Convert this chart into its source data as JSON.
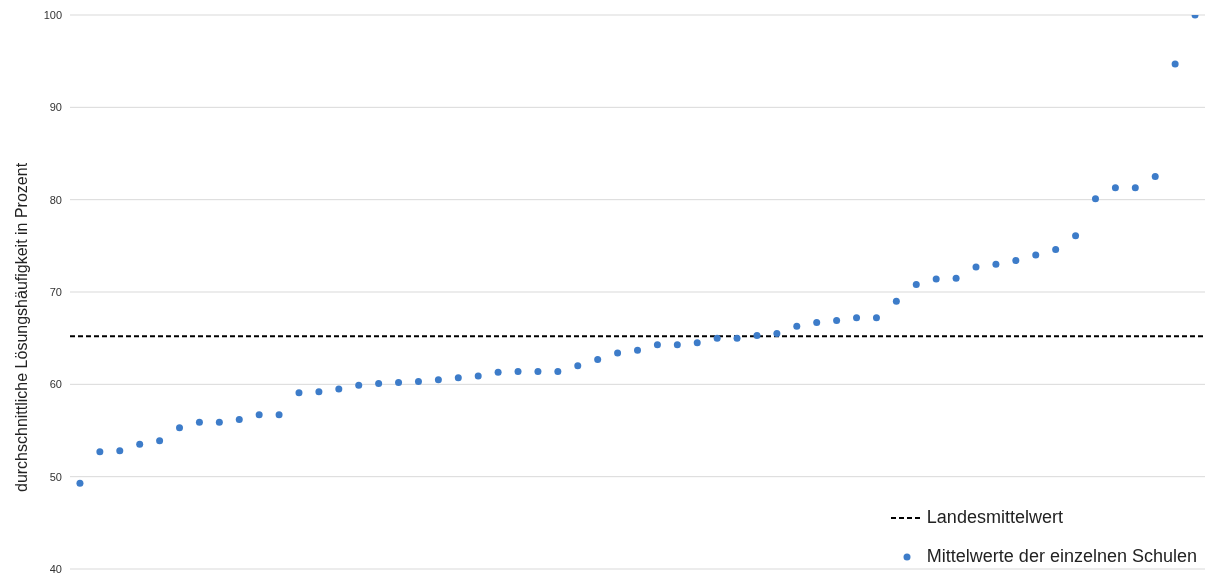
{
  "chart_data": {
    "type": "scatter",
    "ylabel": "durchschnittliche Lösungshäufigkeit in Prozent",
    "categories": [
      null,
      null,
      null,
      null,
      null,
      null,
      null,
      null,
      null,
      null,
      null,
      null,
      null,
      null,
      null,
      null,
      null,
      null,
      null,
      null,
      null,
      null,
      null,
      null,
      null,
      null,
      null,
      null,
      null,
      null,
      null,
      null,
      null,
      null,
      null,
      null,
      null,
      null,
      null,
      null,
      null,
      null,
      null,
      null,
      null,
      null,
      null,
      null,
      null,
      null,
      null,
      null,
      null,
      null,
      null,
      null,
      null
    ],
    "series": [
      {
        "name": "Mittelwerte der einzelnen Schulen",
        "color": "#3d7cc9",
        "values": [
          49.3,
          52.7,
          52.8,
          53.5,
          53.9,
          55.3,
          55.9,
          55.9,
          56.2,
          56.7,
          56.7,
          59.1,
          59.2,
          59.5,
          59.9,
          60.1,
          60.2,
          60.3,
          60.5,
          60.7,
          60.9,
          61.3,
          61.4,
          61.4,
          61.4,
          62.0,
          62.7,
          63.4,
          63.7,
          64.3,
          64.3,
          64.5,
          65.0,
          65.0,
          65.3,
          65.5,
          66.3,
          66.7,
          66.9,
          67.2,
          67.2,
          69.0,
          70.8,
          71.4,
          71.5,
          72.7,
          73.0,
          73.4,
          74.0,
          74.6,
          76.1,
          80.1,
          81.3,
          81.3,
          82.5,
          94.7,
          100
        ]
      }
    ],
    "ref_lines": [
      {
        "axis": "y",
        "value": 65.2,
        "label": "Landesmittelwert",
        "color": "#000000",
        "line_style": "dashed"
      }
    ],
    "ylim": [
      40,
      100
    ],
    "yticks": [
      40,
      50,
      60,
      70,
      80,
      90,
      100
    ],
    "grid": "y",
    "legend": "bottom right",
    "tick_labels": "y",
    "marker": "circle"
  }
}
